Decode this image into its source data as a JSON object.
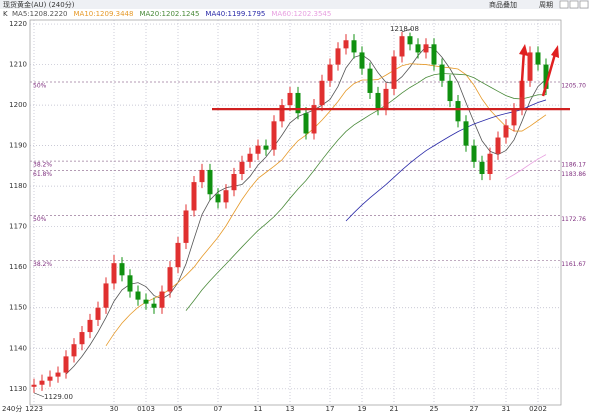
{
  "chart_data": {
    "type": "candlestick",
    "title": "现货黄金(AU) (240分)",
    "toolbar": [
      "商品叠加",
      "周期"
    ],
    "legend_prefix": "K",
    "period_label": "240分",
    "ma": [
      {
        "name": "MA5",
        "label": "MA5:1208.2220",
        "color": "#555555"
      },
      {
        "name": "MA10",
        "label": "MA10:1209.3448",
        "color": "#e69a2a"
      },
      {
        "name": "MA20",
        "label": "MA20:1202.1245",
        "color": "#4a8a3a"
      },
      {
        "name": "MA40",
        "label": "MA40:1199.1795",
        "color": "#2a2aa8"
      },
      {
        "name": "MA60",
        "label": "MA60:1202.3545",
        "color": "#e8a0e0"
      }
    ],
    "categories": [
      "1223",
      null,
      null,
      null,
      null,
      null,
      null,
      null,
      null,
      null,
      "30",
      null,
      null,
      null,
      "0103",
      null,
      null,
      null,
      "05",
      null,
      null,
      null,
      null,
      "07",
      null,
      null,
      null,
      null,
      "11",
      null,
      null,
      null,
      "13",
      null,
      null,
      null,
      null,
      "17",
      null,
      null,
      null,
      "19",
      null,
      null,
      null,
      "21",
      null,
      null,
      null,
      null,
      "25",
      null,
      null,
      null,
      null,
      "27",
      null,
      null,
      null,
      "31",
      null,
      null,
      null,
      "0202",
      null
    ],
    "open": [
      1130.5,
      1131,
      1132,
      1133,
      1134,
      1138,
      1141,
      1144,
      1147,
      1150,
      1156,
      1161,
      1158,
      1154,
      1152,
      1151,
      1150,
      1154,
      1160,
      1166,
      1174,
      1181,
      1184,
      1178,
      1176,
      1179,
      1183,
      1186,
      1188,
      1190,
      1189,
      1196,
      1200,
      1203,
      1198,
      1193,
      1200,
      1206,
      1210,
      1214,
      1216,
      1213,
      1209,
      1203,
      1199,
      1204,
      1212,
      1217,
      1215,
      1213,
      1215,
      1210,
      1206,
      1201,
      1196,
      1190,
      1186,
      1183,
      1188,
      1192,
      1195,
      1199,
      1206,
      1213,
      1210
    ],
    "high": [
      1132.5,
      1133.5,
      1134.5,
      1135.5,
      1139.5,
      1142.5,
      1145.5,
      1148.5,
      1151.5,
      1157.5,
      1163,
      1162.5,
      1159.5,
      1155.5,
      1153.5,
      1152.5,
      1155.5,
      1161.5,
      1167.5,
      1175.5,
      1182.5,
      1185.5,
      1185.5,
      1179.5,
      1180.5,
      1184.5,
      1187.5,
      1189.5,
      1191.5,
      1191.5,
      1197.5,
      1201.5,
      1204.5,
      1204.5,
      1199.5,
      1201.5,
      1207.5,
      1211.5,
      1215.5,
      1217.5,
      1217.5,
      1214.5,
      1210.5,
      1204.5,
      1205.5,
      1213.5,
      1218.08,
      1217.9,
      1216.5,
      1216.5,
      1216.5,
      1211.5,
      1207.5,
      1202.5,
      1197.5,
      1191.5,
      1187.5,
      1189.5,
      1193.5,
      1196.5,
      1200.5,
      1207.5,
      1214.5,
      1214.5,
      1211.5
    ],
    "low": [
      1129,
      1129.5,
      1130.5,
      1131.5,
      1132.5,
      1136.5,
      1139.5,
      1142.5,
      1145.5,
      1148.5,
      1154.5,
      1156.5,
      1152.5,
      1150.5,
      1149.5,
      1148.5,
      1148.5,
      1152.5,
      1158.5,
      1164.5,
      1172.5,
      1179.5,
      1176.5,
      1174.5,
      1174.5,
      1177.5,
      1181.5,
      1184.5,
      1186.5,
      1187.5,
      1187.5,
      1194.5,
      1198.5,
      1196.5,
      1191.5,
      1191.5,
      1198.5,
      1204.5,
      1208.5,
      1212.5,
      1211.5,
      1207.5,
      1201.5,
      1197.5,
      1197.5,
      1202.5,
      1210.5,
      1213.5,
      1211.5,
      1211.5,
      1208.5,
      1204.5,
      1199.5,
      1194.5,
      1188.5,
      1184.5,
      1181.5,
      1181.5,
      1186.5,
      1190.5,
      1193.5,
      1197.5,
      1204.5,
      1208.5,
      1202.5
    ],
    "close": [
      1131,
      1132,
      1133,
      1134,
      1138,
      1141,
      1144,
      1147,
      1150,
      1156,
      1161,
      1158,
      1154,
      1152,
      1151,
      1150,
      1154,
      1160,
      1166,
      1174,
      1181,
      1184,
      1178,
      1176,
      1179,
      1183,
      1186,
      1188,
      1190,
      1189,
      1196,
      1200,
      1203,
      1198,
      1193,
      1200,
      1206,
      1210,
      1214,
      1216,
      1213,
      1209,
      1203,
      1199,
      1204,
      1212,
      1217,
      1215,
      1213,
      1215,
      1210,
      1206,
      1201,
      1196,
      1190,
      1186,
      1183,
      1188,
      1192,
      1195,
      1199,
      1206,
      1213,
      1210,
      1204
    ],
    "up_color": "#e03030",
    "down_color": "#109010",
    "ylim": [
      1126,
      1221
    ],
    "yticks": [
      1130,
      1140,
      1150,
      1160,
      1170,
      1180,
      1190,
      1200,
      1210,
      1220
    ],
    "grid": true,
    "fib_levels": [
      {
        "pct": "50%",
        "value": 1205.7,
        "label": "1205.70"
      },
      {
        "pct": "38.2%",
        "value": 1186.17
      },
      {
        "pct": "61.8%",
        "value": 1183.86
      },
      {
        "pct": "50%",
        "value": 1172.76
      },
      {
        "pct": "38.2%",
        "value": 1161.67
      }
    ],
    "hline": {
      "value": 1199,
      "color": "#d02020"
    },
    "annotations": [
      {
        "value": 1218.08
      },
      {
        "value": 1129,
        "label": "1129.00"
      }
    ]
  }
}
